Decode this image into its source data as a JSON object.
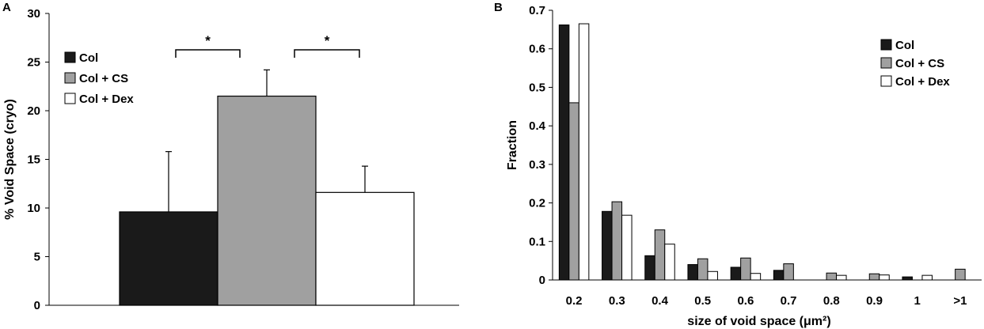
{
  "chart_data": [
    {
      "panel": "A",
      "type": "bar",
      "ylabel": "% Void Space (cryo)",
      "xlabel": "",
      "ylim": [
        0,
        30
      ],
      "yticks": [
        0,
        5,
        10,
        15,
        20,
        25,
        30
      ],
      "colors": [
        "#1a1a1a",
        "#a0a0a0",
        "#ffffff"
      ],
      "series": [
        {
          "name": "Col",
          "value": 9.6,
          "error": 6.2
        },
        {
          "name": "Col + CS",
          "value": 21.5,
          "error": 2.7
        },
        {
          "name": "Col + Dex",
          "value": 11.6,
          "error": 2.7
        }
      ],
      "significance": [
        {
          "from": "Col",
          "to": "Col + CS",
          "label": "*"
        },
        {
          "from": "Col + CS",
          "to": "Col + Dex",
          "label": "*"
        }
      ],
      "legend_position": "top-left"
    },
    {
      "panel": "B",
      "type": "bar",
      "ylabel": "Fraction",
      "xlabel": "size of void space (μm²)",
      "ylim": [
        0,
        0.7
      ],
      "yticks": [
        0,
        0.1,
        0.2,
        0.3,
        0.4,
        0.5,
        0.6,
        0.7
      ],
      "categories": [
        "0.2",
        "0.3",
        "0.4",
        "0.5",
        "0.6",
        "0.7",
        "0.8",
        "0.9",
        "1",
        ">1"
      ],
      "colors": [
        "#1a1a1a",
        "#a0a0a0",
        "#ffffff"
      ],
      "series": [
        {
          "name": "Col",
          "values": [
            0.662,
            0.178,
            0.063,
            0.04,
            0.033,
            0.025,
            0,
            0,
            0.008,
            0
          ]
        },
        {
          "name": "Col + CS",
          "values": [
            0.46,
            0.203,
            0.13,
            0.055,
            0.057,
            0.042,
            0.018,
            0.016,
            0,
            0.028
          ]
        },
        {
          "name": "Col + Dex",
          "values": [
            0.665,
            0.168,
            0.093,
            0.022,
            0.017,
            0,
            0.012,
            0.013,
            0.012,
            0
          ]
        }
      ],
      "legend_position": "top-right"
    }
  ]
}
